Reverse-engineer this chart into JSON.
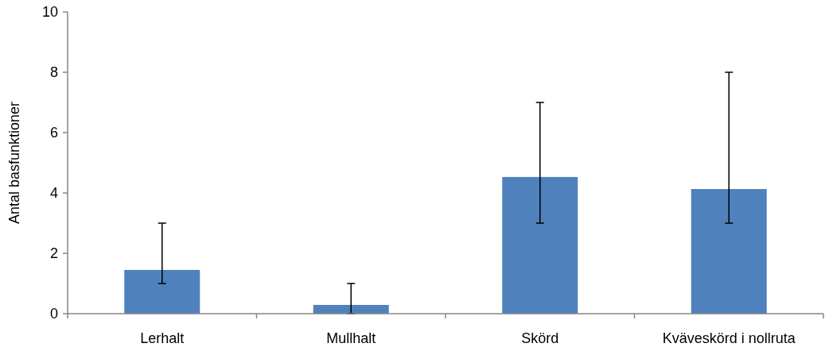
{
  "chart_data": {
    "type": "bar",
    "ylabel": "Antal basfunktioner",
    "categories": [
      "Lerhalt",
      "Mullhalt",
      "Skörd",
      "Kväveskörd i nollruta"
    ],
    "values": [
      1.45,
      0.29,
      4.53,
      4.13
    ],
    "errors": [
      [
        1,
        3
      ],
      [
        0,
        1
      ],
      [
        3,
        7
      ],
      [
        3,
        8
      ]
    ],
    "color": "#4f81bd",
    "ylim": [
      0,
      10
    ],
    "yticks": [
      0,
      2,
      4,
      6,
      8,
      10
    ],
    "grid": false
  }
}
